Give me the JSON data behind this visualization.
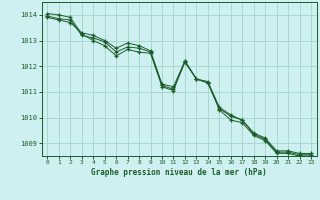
{
  "background_color": "#cff0f0",
  "grid_color": "#a8d8d0",
  "line_color": "#1a5c2a",
  "marker_color": "#1a5c2a",
  "title": "Graphe pression niveau de la mer (hPa)",
  "ylim": [
    1008.5,
    1014.5
  ],
  "xlim": [
    -0.5,
    23.5
  ],
  "yticks": [
    1009,
    1010,
    1011,
    1012,
    1013,
    1014
  ],
  "xticks": [
    0,
    1,
    2,
    3,
    4,
    5,
    6,
    7,
    8,
    9,
    10,
    11,
    12,
    13,
    14,
    15,
    16,
    17,
    18,
    19,
    20,
    21,
    22,
    23
  ],
  "series": [
    [
      1013.9,
      1013.8,
      1013.7,
      1013.3,
      1013.2,
      1013.0,
      1012.7,
      1012.9,
      1012.8,
      1012.6,
      1011.3,
      1011.2,
      1012.2,
      1011.5,
      1011.4,
      1010.4,
      1010.1,
      1009.9,
      1009.4,
      1009.2,
      1008.7,
      1008.7,
      1008.6,
      1008.6
    ],
    [
      1013.95,
      1013.85,
      1013.8,
      1013.2,
      1013.1,
      1012.95,
      1012.55,
      1012.75,
      1012.7,
      1012.55,
      1011.25,
      1011.1,
      1012.15,
      1011.5,
      1011.35,
      1010.35,
      1010.05,
      1009.9,
      1009.35,
      1009.15,
      1008.65,
      1008.65,
      1008.55,
      1008.55
    ],
    [
      1014.05,
      1014.0,
      1013.9,
      1013.25,
      1013.0,
      1012.8,
      1012.4,
      1012.65,
      1012.55,
      1012.5,
      1011.2,
      1011.05,
      1012.2,
      1011.5,
      1011.35,
      1010.3,
      1009.9,
      1009.8,
      1009.3,
      1009.1,
      1008.6,
      1008.6,
      1008.5,
      1008.5
    ]
  ]
}
